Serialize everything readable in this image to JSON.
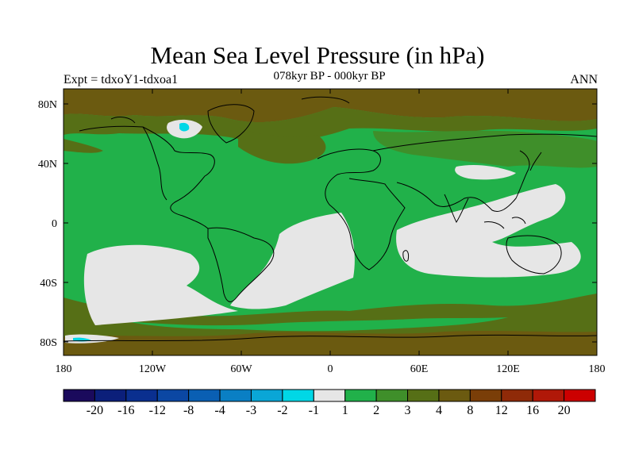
{
  "title": "Mean Sea Level Pressure (in hPa)",
  "subtitle_left": "Expt = tdxoY1-tdxoa1",
  "subtitle_center": "078kyr BP - 000kyr BP",
  "subtitle_right": "ANN",
  "lat_ticks": [
    "80N",
    "40N",
    "0",
    "40S",
    "80S"
  ],
  "lon_ticks": [
    "180",
    "120W",
    "60W",
    "0",
    "60E",
    "120E",
    "180"
  ],
  "colorbar": {
    "labels": [
      "-20",
      "-16",
      "-12",
      "-8",
      "-4",
      "-3",
      "-2",
      "-1",
      "1",
      "2",
      "3",
      "4",
      "8",
      "12",
      "16",
      "20"
    ],
    "colors": [
      "#1a0a5c",
      "#0b1f7a",
      "#0a2f8f",
      "#0b47a3",
      "#0a5fb3",
      "#0a7fc4",
      "#0aa6d6",
      "#00d7e6",
      "#e6e6e6",
      "#21b14a",
      "#3f8f2a",
      "#566f16",
      "#6b5a10",
      "#7a3e08",
      "#8f2a08",
      "#b01808",
      "#cc0000"
    ]
  },
  "colors": {
    "ocean_light": "#e6e6e6",
    "green_bright": "#21b14a",
    "green_mid": "#3f8f2a",
    "olive": "#566f16",
    "brown": "#6b5a10",
    "cyan": "#00d7e6"
  }
}
